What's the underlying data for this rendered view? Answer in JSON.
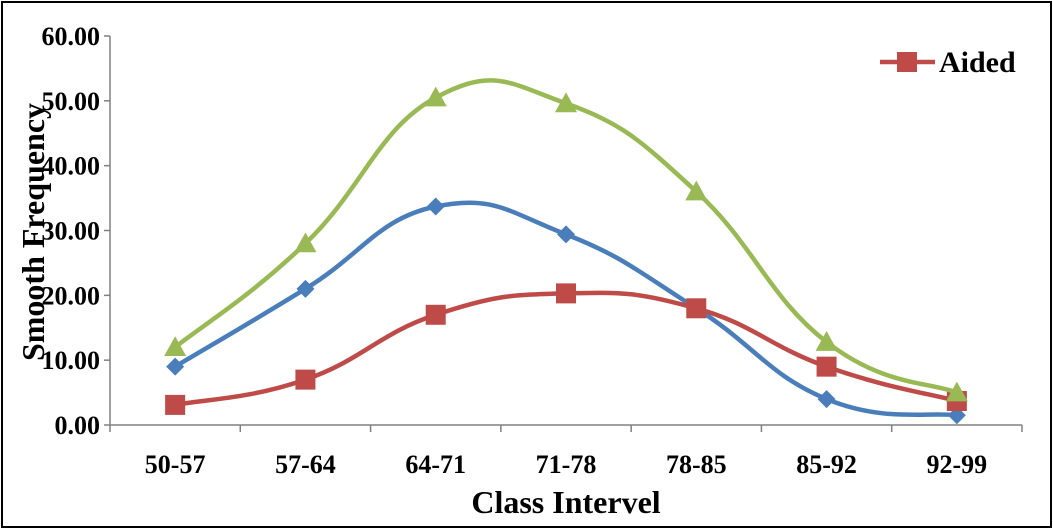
{
  "chart_data": {
    "type": "line",
    "title": "",
    "xlabel": "Class Intervel",
    "ylabel": "Smooth Frequency",
    "categories": [
      "50-57",
      "57-64",
      "64-71",
      "71-78",
      "78-85",
      "85-92",
      "92-99"
    ],
    "ylim": [
      0,
      60
    ],
    "yticks": [
      "0.00",
      "10.00",
      "20.00",
      "30.00",
      "40.00",
      "50.00",
      "60.00"
    ],
    "grid": false,
    "legend_position": "top-right",
    "smooth": true,
    "series": [
      {
        "values": [
          9.0,
          21.0,
          33.7,
          29.4,
          18.0,
          4.0,
          1.5
        ],
        "color": "#4a7ebb",
        "marker": "diamond"
      },
      {
        "name": "Aided",
        "values": [
          3.1,
          7.0,
          17.0,
          20.3,
          18.0,
          9.0,
          3.7
        ],
        "color": "#be4b48",
        "marker": "square"
      },
      {
        "values": [
          12.0,
          28.0,
          50.5,
          49.6,
          36.0,
          12.8,
          5.0
        ],
        "color": "#98b954",
        "marker": "triangle"
      }
    ]
  }
}
